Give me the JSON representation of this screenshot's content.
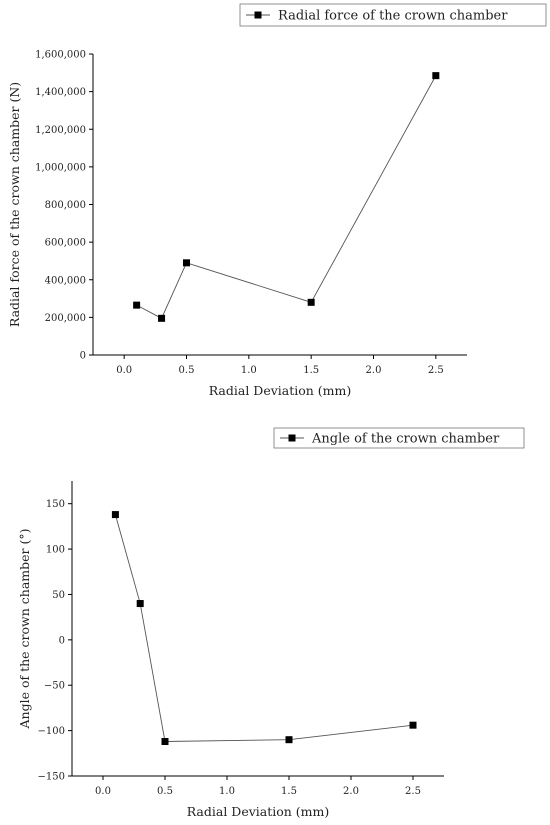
{
  "chart_data": [
    {
      "type": "line",
      "x": [
        0.1,
        0.3,
        0.5,
        1.5,
        2.5
      ],
      "series": [
        {
          "name": "Radial force of the crown chamber",
          "values": [
            265000,
            195000,
            490000,
            280000,
            1485000
          ]
        }
      ],
      "xlabel": "Radial Deviation (mm)",
      "ylabel": "Radial force of the crown chamber (N)",
      "xlim": [
        -0.25,
        2.75
      ],
      "ylim": [
        0,
        1600000
      ],
      "xticks": [
        0.0,
        0.5,
        1.0,
        1.5,
        2.0,
        2.5
      ],
      "xtick_labels": [
        "0.0",
        "0.5",
        "1.0",
        "1.5",
        "2.0",
        "2.5"
      ],
      "yticks": [
        0,
        200000,
        400000,
        600000,
        800000,
        1000000,
        1200000,
        1400000,
        1600000
      ],
      "ytick_labels": [
        "0",
        "200,000",
        "400,000",
        "600,000",
        "800,000",
        "1,000,000",
        "1,200,000",
        "1,400,000",
        "1,600,000"
      ],
      "grid": false,
      "legend": "top-right",
      "marker": "square",
      "color": "#000000"
    },
    {
      "type": "line",
      "x": [
        0.1,
        0.3,
        0.5,
        1.5,
        2.5
      ],
      "series": [
        {
          "name": "Angle of the crown chamber",
          "values": [
            138,
            40,
            -112,
            -110,
            -94
          ]
        }
      ],
      "xlabel": "Radial Deviation (mm)",
      "ylabel": "Angle of the crown chamber (°)",
      "xlim": [
        -0.25,
        2.75
      ],
      "ylim": [
        -150,
        175
      ],
      "xticks": [
        0.0,
        0.5,
        1.0,
        1.5,
        2.0,
        2.5
      ],
      "xtick_labels": [
        "0.0",
        "0.5",
        "1.0",
        "1.5",
        "2.0",
        "2.5"
      ],
      "yticks": [
        -150,
        -100,
        -50,
        0,
        50,
        100,
        150
      ],
      "ytick_labels": [
        "−150",
        "−100",
        "−50",
        "0",
        "50",
        "100",
        "150"
      ],
      "grid": false,
      "legend": "top-right",
      "marker": "square",
      "color": "#000000"
    }
  ]
}
